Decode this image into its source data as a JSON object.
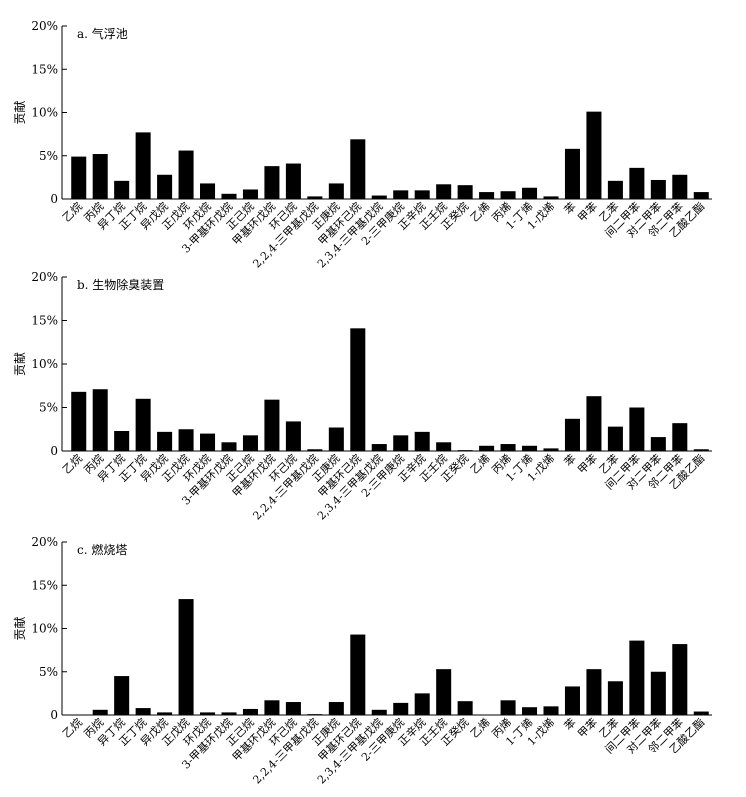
{
  "chart_data": [
    {
      "type": "bar",
      "title": "a. 气浮池",
      "ylabel": "贡献",
      "ylim": [
        0,
        20
      ],
      "yticks": [
        "0",
        "5%",
        "10%",
        "15%",
        "20%"
      ],
      "categories": [
        "乙烷",
        "丙烷",
        "异丁烷",
        "正丁烷",
        "异戊烷",
        "正戊烷",
        "环戊烷",
        "3-甲基环戊烷",
        "正己烷",
        "甲基环戊烷",
        "环己烷",
        "2,2,4-三甲基戊烷",
        "正庚烷",
        "甲基环己烷",
        "2,3,4-三甲基戊烷",
        "2-三甲庚烷",
        "正辛烷",
        "正壬烷",
        "正癸烷",
        "乙烯",
        "丙烯",
        "1-丁烯",
        "1-戊烯",
        "苯",
        "甲苯",
        "乙苯",
        "间二甲苯",
        "对二甲苯",
        "邻二甲苯",
        "乙酸乙酯"
      ],
      "values": [
        4.9,
        5.2,
        2.1,
        7.7,
        2.8,
        5.6,
        1.8,
        0.6,
        1.1,
        3.8,
        4.1,
        0.3,
        1.8,
        6.9,
        0.4,
        1.0,
        1.0,
        1.7,
        1.6,
        0.8,
        0.9,
        1.3,
        0.3,
        5.8,
        10.1,
        2.1,
        3.6,
        2.2,
        2.8,
        0.8
      ]
    },
    {
      "type": "bar",
      "title": "b. 生物除臭装置",
      "ylabel": "贡献",
      "ylim": [
        0,
        20
      ],
      "yticks": [
        "0",
        "5%",
        "10%",
        "15%",
        "20%"
      ],
      "categories": [
        "乙烷",
        "丙烷",
        "异丁烷",
        "正丁烷",
        "异戊烷",
        "正戊烷",
        "环戊烷",
        "3-甲基环戊烷",
        "正己烷",
        "甲基环戊烷",
        "环己烷",
        "2,2,4-三甲基戊烷",
        "正庚烷",
        "甲基环己烷",
        "2,3,4-三甲基戊烷",
        "2-三甲庚烷",
        "正辛烷",
        "正壬烷",
        "正癸烷",
        "乙烯",
        "丙烯",
        "1-丁烯",
        "1-戊烯",
        "苯",
        "甲苯",
        "乙苯",
        "间二甲苯",
        "对二甲苯",
        "邻二甲苯",
        "乙酸乙酯"
      ],
      "values": [
        6.8,
        7.1,
        2.3,
        6.0,
        2.2,
        2.5,
        2.0,
        1.0,
        1.8,
        5.9,
        3.4,
        0.2,
        2.7,
        14.1,
        0.8,
        1.8,
        2.2,
        1.0,
        0.1,
        0.6,
        0.8,
        0.6,
        0.3,
        3.7,
        6.3,
        2.8,
        5.0,
        1.6,
        3.2,
        0.2
      ]
    },
    {
      "type": "bar",
      "title": "c. 燃烧塔",
      "ylabel": "贡献",
      "ylim": [
        0,
        20
      ],
      "yticks": [
        "0",
        "5%",
        "10%",
        "15%",
        "20%"
      ],
      "categories": [
        "乙烷",
        "丙烷",
        "异丁烷",
        "正丁烷",
        "异戊烷",
        "正戊烷",
        "环戊烷",
        "3-甲基环戊烷",
        "正己烷",
        "甲基环戊烷",
        "环己烷",
        "2,2,4-三甲基戊烷",
        "正庚烷",
        "甲基环己烷",
        "2,3,4-三甲基戊烷",
        "2-三甲庚烷",
        "正辛烷",
        "正壬烷",
        "正癸烷",
        "乙烯",
        "丙烯",
        "1-丁烯",
        "1-戊烯",
        "苯",
        "甲苯",
        "乙苯",
        "间二甲苯",
        "对二甲苯",
        "邻二甲苯",
        "乙酸乙酯"
      ],
      "values": [
        0.0,
        0.6,
        4.5,
        0.8,
        0.3,
        13.4,
        0.3,
        0.3,
        0.7,
        1.7,
        1.5,
        0.1,
        1.5,
        9.3,
        0.6,
        1.4,
        2.5,
        5.3,
        1.6,
        0.0,
        1.7,
        0.9,
        1.0,
        3.3,
        5.3,
        3.9,
        8.6,
        5.0,
        8.2,
        0.4
      ]
    }
  ]
}
